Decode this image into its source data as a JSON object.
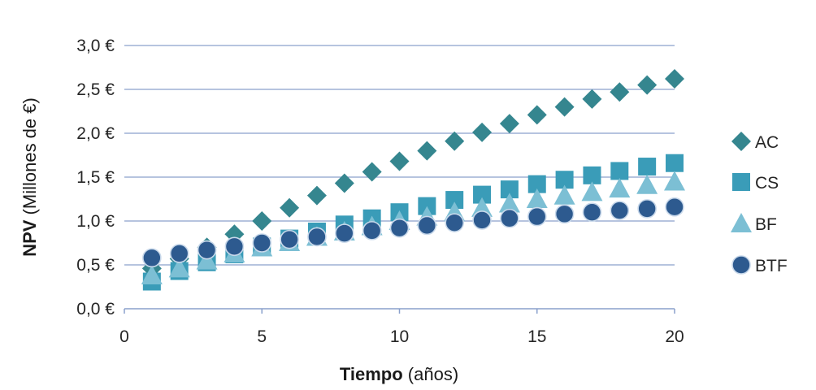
{
  "chart_data": {
    "type": "scatter",
    "x": [
      1,
      2,
      3,
      4,
      5,
      6,
      7,
      8,
      9,
      10,
      11,
      12,
      13,
      14,
      15,
      16,
      17,
      18,
      19,
      20
    ],
    "xlim": [
      0,
      20
    ],
    "ylim": [
      0,
      3
    ],
    "x_ticks": [
      "0",
      "5",
      "10",
      "15",
      "20"
    ],
    "x_tick_values": [
      0,
      5,
      10,
      15,
      20
    ],
    "y_ticks": [
      "0,0 €",
      "0,5 €",
      "1,0 €",
      "1,5 €",
      "2,0 €",
      "2,5 €",
      "3,0 €"
    ],
    "y_tick_values": [
      0,
      0.5,
      1,
      1.5,
      2,
      2.5,
      3
    ],
    "xlabel_bold": "Tiempo",
    "xlabel_rest": " (años)",
    "ylabel_bold": "NPV",
    "ylabel_rest": " (Millones de €)",
    "grid": "horizontal",
    "legend_position": "right",
    "series": [
      {
        "name": "AC",
        "marker": "diamond",
        "color": "#35868f",
        "values": [
          0.46,
          0.57,
          0.7,
          0.85,
          1.0,
          1.15,
          1.29,
          1.43,
          1.56,
          1.68,
          1.8,
          1.91,
          2.01,
          2.11,
          2.21,
          2.3,
          2.39,
          2.47,
          2.55,
          2.62
        ]
      },
      {
        "name": "CS",
        "marker": "square",
        "color": "#3a9cb8",
        "values": [
          0.31,
          0.43,
          0.53,
          0.62,
          0.71,
          0.8,
          0.88,
          0.96,
          1.03,
          1.1,
          1.17,
          1.24,
          1.3,
          1.36,
          1.42,
          1.47,
          1.52,
          1.57,
          1.62,
          1.66
        ]
      },
      {
        "name": "BF",
        "marker": "triangle",
        "color": "#7cbfd4",
        "values": [
          0.38,
          0.46,
          0.55,
          0.63,
          0.7,
          0.76,
          0.82,
          0.88,
          0.94,
          1.0,
          1.05,
          1.1,
          1.15,
          1.2,
          1.25,
          1.29,
          1.33,
          1.37,
          1.41,
          1.45
        ]
      },
      {
        "name": "BTF",
        "marker": "circle",
        "color": "#2d5a8f",
        "values": [
          0.58,
          0.63,
          0.67,
          0.71,
          0.75,
          0.79,
          0.82,
          0.86,
          0.89,
          0.92,
          0.95,
          0.98,
          1.01,
          1.03,
          1.05,
          1.08,
          1.1,
          1.12,
          1.14,
          1.16
        ]
      }
    ]
  }
}
